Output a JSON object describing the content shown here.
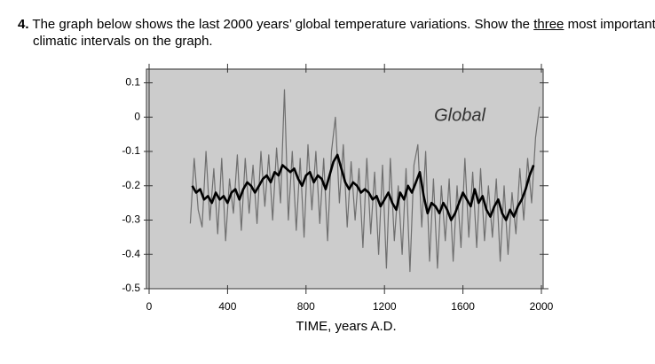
{
  "question": {
    "number": "4.",
    "before": "The graph below shows the last 2000 years’ global temperature variations. Show the",
    "underlined": "three",
    "after": "most important climatic intervals on the graph."
  },
  "chart_data": {
    "type": "line",
    "title": "Global",
    "xlabel": "TIME, years A.D.",
    "xlim": [
      0,
      2000
    ],
    "xticks": [
      0,
      400,
      800,
      1200,
      1600,
      2000
    ],
    "ylim": [
      -0.5,
      0.14
    ],
    "yticks": [
      0.1,
      0,
      -0.1,
      -0.2,
      -0.3,
      -0.4,
      -0.5
    ],
    "background": "#cccccc",
    "series": [
      {
        "color": "#6e6e6e",
        "width": 1.2,
        "x": [
          210,
          230,
          250,
          270,
          290,
          310,
          330,
          350,
          370,
          390,
          410,
          430,
          450,
          470,
          490,
          510,
          530,
          550,
          570,
          590,
          610,
          630,
          650,
          670,
          690,
          710,
          730,
          750,
          770,
          790,
          810,
          830,
          850,
          870,
          890,
          910,
          930,
          950,
          970,
          990,
          1010,
          1030,
          1050,
          1070,
          1090,
          1110,
          1130,
          1150,
          1170,
          1190,
          1210,
          1230,
          1250,
          1270,
          1290,
          1310,
          1330,
          1350,
          1370,
          1390,
          1410,
          1430,
          1450,
          1470,
          1490,
          1510,
          1530,
          1550,
          1570,
          1590,
          1610,
          1630,
          1650,
          1670,
          1690,
          1710,
          1730,
          1750,
          1770,
          1790,
          1810,
          1830,
          1850,
          1870,
          1890,
          1910,
          1930,
          1950,
          1970,
          1990
        ],
        "values": [
          -0.31,
          -0.12,
          -0.27,
          -0.32,
          -0.1,
          -0.3,
          -0.15,
          -0.34,
          -0.12,
          -0.36,
          -0.18,
          -0.28,
          -0.11,
          -0.33,
          -0.12,
          -0.28,
          -0.14,
          -0.31,
          -0.1,
          -0.26,
          -0.11,
          -0.3,
          -0.09,
          -0.25,
          0.08,
          -0.3,
          -0.1,
          -0.33,
          -0.12,
          -0.35,
          -0.08,
          -0.27,
          -0.1,
          -0.31,
          -0.12,
          -0.36,
          -0.1,
          0,
          -0.25,
          -0.08,
          -0.32,
          -0.13,
          -0.3,
          -0.15,
          -0.38,
          -0.12,
          -0.34,
          -0.16,
          -0.4,
          -0.14,
          -0.44,
          -0.12,
          -0.36,
          -0.2,
          -0.4,
          -0.15,
          -0.45,
          -0.14,
          -0.08,
          -0.32,
          -0.1,
          -0.42,
          -0.18,
          -0.44,
          -0.2,
          -0.36,
          -0.18,
          -0.42,
          -0.2,
          -0.38,
          -0.12,
          -0.35,
          -0.16,
          -0.38,
          -0.15,
          -0.36,
          -0.2,
          -0.35,
          -0.18,
          -0.42,
          -0.2,
          -0.4,
          -0.22,
          -0.34,
          -0.15,
          -0.3,
          -0.12,
          -0.25,
          -0.06,
          0.03
        ]
      },
      {
        "color": "#000000",
        "width": 2.6,
        "x": [
          220,
          240,
          260,
          280,
          300,
          320,
          340,
          360,
          380,
          400,
          420,
          440,
          460,
          480,
          500,
          520,
          540,
          560,
          580,
          600,
          620,
          640,
          660,
          680,
          700,
          720,
          740,
          760,
          780,
          800,
          820,
          840,
          860,
          880,
          900,
          920,
          940,
          960,
          980,
          1000,
          1020,
          1040,
          1060,
          1080,
          1100,
          1120,
          1140,
          1160,
          1180,
          1200,
          1220,
          1240,
          1260,
          1280,
          1300,
          1320,
          1340,
          1360,
          1380,
          1400,
          1420,
          1440,
          1460,
          1480,
          1500,
          1520,
          1540,
          1560,
          1580,
          1600,
          1620,
          1640,
          1660,
          1680,
          1700,
          1720,
          1740,
          1760,
          1780,
          1800,
          1820,
          1840,
          1860,
          1880,
          1900,
          1920,
          1940,
          1960
        ],
        "values": [
          -0.2,
          -0.22,
          -0.21,
          -0.24,
          -0.23,
          -0.25,
          -0.22,
          -0.24,
          -0.23,
          -0.25,
          -0.22,
          -0.21,
          -0.24,
          -0.21,
          -0.19,
          -0.2,
          -0.22,
          -0.2,
          -0.18,
          -0.17,
          -0.19,
          -0.16,
          -0.17,
          -0.14,
          -0.15,
          -0.16,
          -0.15,
          -0.18,
          -0.2,
          -0.17,
          -0.16,
          -0.19,
          -0.17,
          -0.18,
          -0.21,
          -0.17,
          -0.13,
          -0.11,
          -0.15,
          -0.19,
          -0.21,
          -0.19,
          -0.2,
          -0.22,
          -0.21,
          -0.22,
          -0.24,
          -0.23,
          -0.26,
          -0.24,
          -0.22,
          -0.25,
          -0.27,
          -0.22,
          -0.24,
          -0.2,
          -0.22,
          -0.19,
          -0.16,
          -0.23,
          -0.28,
          -0.25,
          -0.26,
          -0.28,
          -0.25,
          -0.27,
          -0.3,
          -0.28,
          -0.25,
          -0.22,
          -0.24,
          -0.26,
          -0.21,
          -0.25,
          -0.23,
          -0.27,
          -0.29,
          -0.26,
          -0.24,
          -0.28,
          -0.3,
          -0.27,
          -0.29,
          -0.26,
          -0.24,
          -0.21,
          -0.17,
          -0.14
        ]
      }
    ]
  }
}
